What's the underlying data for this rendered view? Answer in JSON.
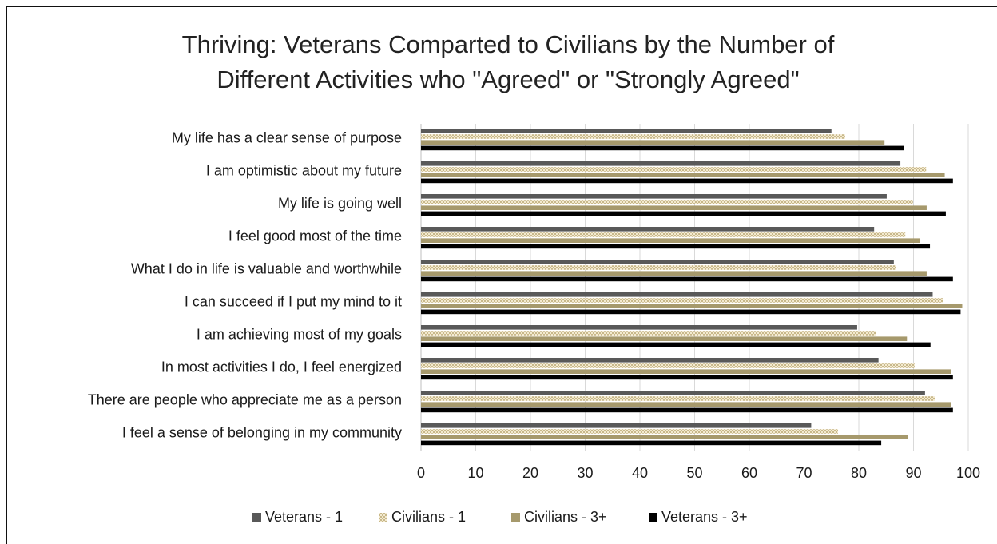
{
  "chart_data": {
    "type": "bar",
    "orientation": "horizontal",
    "title": "Thriving: Veterans Comparted to Civilians by the Number of\nDifferent Activities who \"Agreed\" or \"Strongly Agreed\"",
    "categories": [
      "My life has a clear sense of purpose",
      "I am optimistic about my future",
      "My life is going well",
      "I feel good most of the time",
      "What I do in life is valuable and worthwhile",
      "I can succeed if I put my mind to it",
      "I am achieving most of my goals",
      "In most activities I do, I feel energized",
      "There are people who appreciate me as a person",
      "I feel a sense of belonging in my community"
    ],
    "series": [
      {
        "name": "Veterans - 1",
        "color": "#595959",
        "pattern": "solid",
        "values": [
          75,
          87.6,
          85.1,
          82.8,
          86.4,
          93.5,
          79.7,
          83.6,
          92.1,
          71.3
        ]
      },
      {
        "name": "Civilians - 1",
        "color": "#c8b88a",
        "pattern": "checker",
        "values": [
          77.5,
          92.3,
          89.9,
          88.5,
          86.8,
          95.4,
          83.1,
          90.2,
          94,
          76.2
        ]
      },
      {
        "name": "Civilians - 3+",
        "color": "#a6996c",
        "pattern": "solid",
        "values": [
          84.7,
          95.7,
          92.4,
          91.2,
          92.4,
          98.9,
          88.8,
          96.8,
          96.8,
          89
        ]
      },
      {
        "name": "Veterans - 3+",
        "color": "#000000",
        "pattern": "solid",
        "values": [
          88.3,
          97.2,
          95.9,
          93,
          97.2,
          98.6,
          93.1,
          97.2,
          97.2,
          84.1
        ]
      }
    ],
    "xlim": [
      0,
      100
    ],
    "xticks": [
      "0",
      "10",
      "20",
      "30",
      "40",
      "50",
      "60",
      "70",
      "80",
      "90",
      "100"
    ],
    "grid": "vertical",
    "legend": "bottom"
  }
}
